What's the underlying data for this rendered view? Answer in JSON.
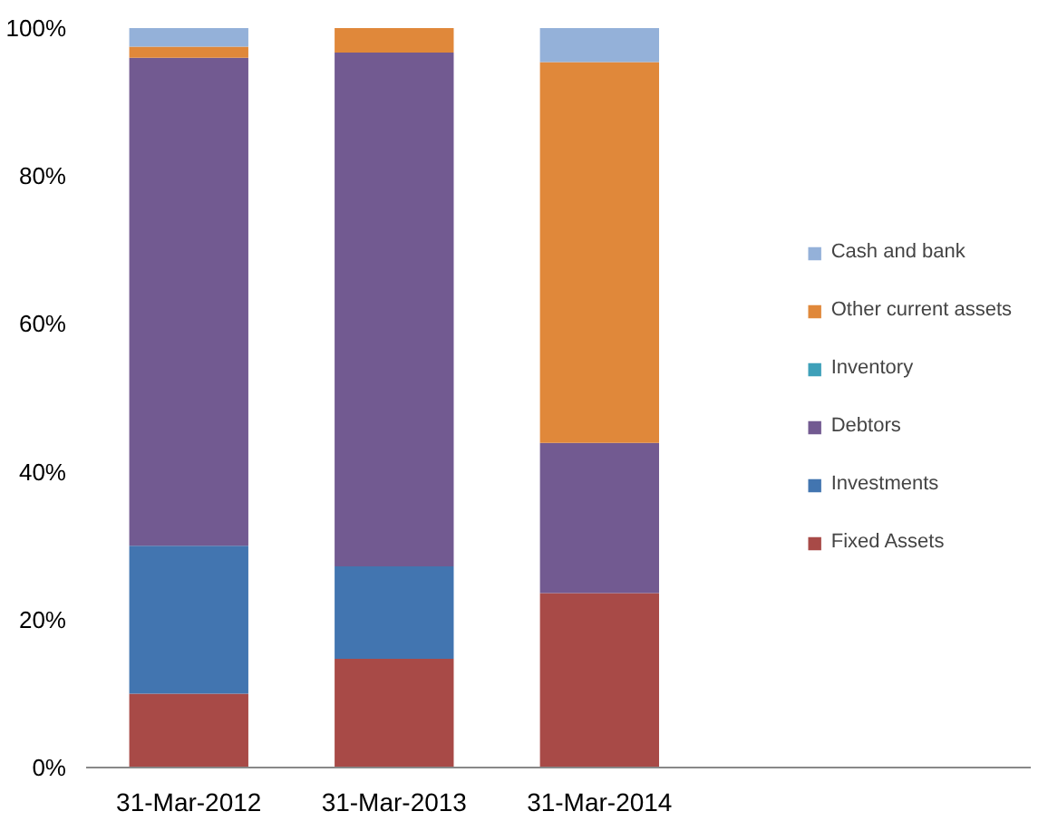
{
  "chart_data": {
    "type": "bar",
    "stacked": true,
    "categories": [
      "31-Mar-2012",
      "31-Mar-2013",
      "31-Mar-2014"
    ],
    "series": [
      {
        "name": "Fixed Assets",
        "color": "#a84a47",
        "values": [
          10,
          14.7,
          23.6
        ]
      },
      {
        "name": "Investments",
        "color": "#4275b0",
        "values": [
          20,
          12.5,
          0
        ]
      },
      {
        "name": "Debtors",
        "color": "#725a91",
        "values": [
          66,
          69.5,
          20.3
        ]
      },
      {
        "name": "Inventory",
        "color": "#3ea0b9",
        "values": [
          0,
          0,
          0
        ]
      },
      {
        "name": "Other current assets",
        "color": "#e0883a",
        "values": [
          1.5,
          3.3,
          51.5
        ]
      },
      {
        "name": "Cash and bank",
        "color": "#94b1d9",
        "values": [
          2.5,
          0,
          4.6
        ]
      }
    ],
    "ylim": [
      0,
      100
    ],
    "yticks": [
      {
        "value": 0,
        "label": "0%"
      },
      {
        "value": 20,
        "label": "20%"
      },
      {
        "value": 40,
        "label": "40%"
      },
      {
        "value": 60,
        "label": "60%"
      },
      {
        "value": 80,
        "label": "80%"
      },
      {
        "value": 100,
        "label": "100%"
      }
    ],
    "grid": false,
    "legend": "right"
  }
}
